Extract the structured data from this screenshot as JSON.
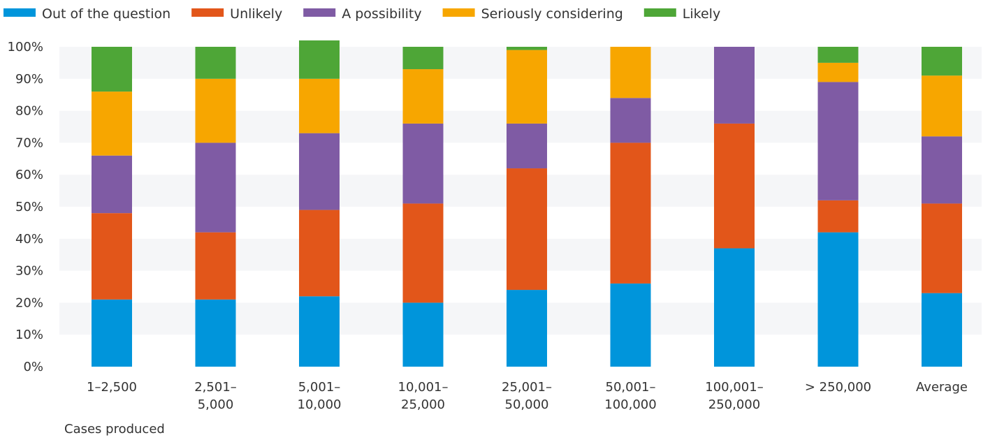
{
  "chart_data": {
    "type": "bar",
    "stacked": true,
    "title": "",
    "xlabel": "Cases produced",
    "ylabel": "",
    "ylim": [
      0,
      100
    ],
    "yticks": [
      "0%",
      "10%",
      "20%",
      "30%",
      "40%",
      "50%",
      "60%",
      "70%",
      "80%",
      "90%",
      "100%"
    ],
    "grid": "alternating horizontal bands",
    "legend_position": "top-left",
    "categories": [
      [
        "1–2,500"
      ],
      [
        "2,501–",
        "5,000"
      ],
      [
        "5,001–",
        "10,000"
      ],
      [
        "10,001–",
        "25,000"
      ],
      [
        "25,001–",
        "50,000"
      ],
      [
        "50,001–",
        "100,000"
      ],
      [
        "100,001–",
        "250,000"
      ],
      [
        "> 250,000"
      ],
      [
        "Average"
      ]
    ],
    "series": [
      {
        "name": "Out of the question",
        "color": "#0095db",
        "values": [
          21,
          21,
          22,
          20,
          24,
          26,
          37,
          42,
          23
        ]
      },
      {
        "name": "Unlikely",
        "color": "#e2561a",
        "values": [
          27,
          21,
          27,
          31,
          38,
          44,
          39,
          10,
          28
        ]
      },
      {
        "name": "A possibility",
        "color": "#7f5ba4",
        "values": [
          18,
          28,
          24,
          25,
          14,
          14,
          24,
          37,
          21
        ]
      },
      {
        "name": "Seriously considering",
        "color": "#f7a600",
        "values": [
          20,
          20,
          17,
          17,
          23,
          16,
          0,
          6,
          19
        ]
      },
      {
        "name": "Likely",
        "color": "#4ea637",
        "values": [
          14,
          10,
          12,
          7,
          1,
          0,
          0,
          5,
          9
        ]
      }
    ]
  }
}
